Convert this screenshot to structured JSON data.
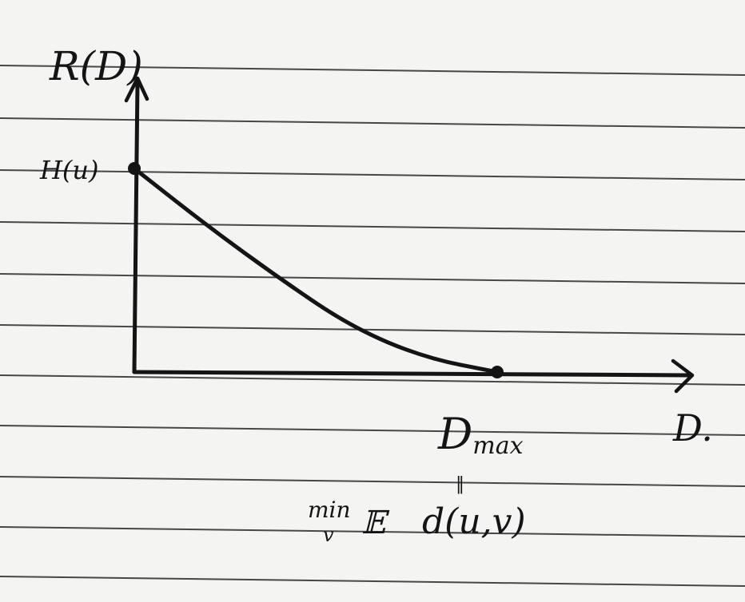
{
  "page": {
    "paper_color": "#f4f4f2",
    "rule_color": "#2a2a2a",
    "ink_color": "#141414"
  },
  "chart_data": {
    "type": "line",
    "ylabel": "R(D)",
    "xlabel": "D.",
    "y_tick_label": "H(u)",
    "x_point_label": "Dmax",
    "x_point_label_base": "D",
    "x_point_label_sub": "max",
    "equals_mark": "‖",
    "definition": {
      "operator": "min",
      "under": "v",
      "expectation": "𝔼",
      "body": "d(u,v)"
    },
    "series": [
      {
        "x": [
          0,
          0.2,
          0.4,
          0.6,
          0.8,
          1.0
        ],
        "y": [
          1.0,
          0.72,
          0.46,
          0.22,
          0.07,
          0.0
        ]
      }
    ],
    "xlim": [
      0,
      1.6
    ],
    "ylim": [
      0,
      1.35
    ],
    "grid": false,
    "marked_points": [
      {
        "x": 0,
        "y": 1.0
      },
      {
        "x": 1.0,
        "y": 0.0
      }
    ]
  }
}
